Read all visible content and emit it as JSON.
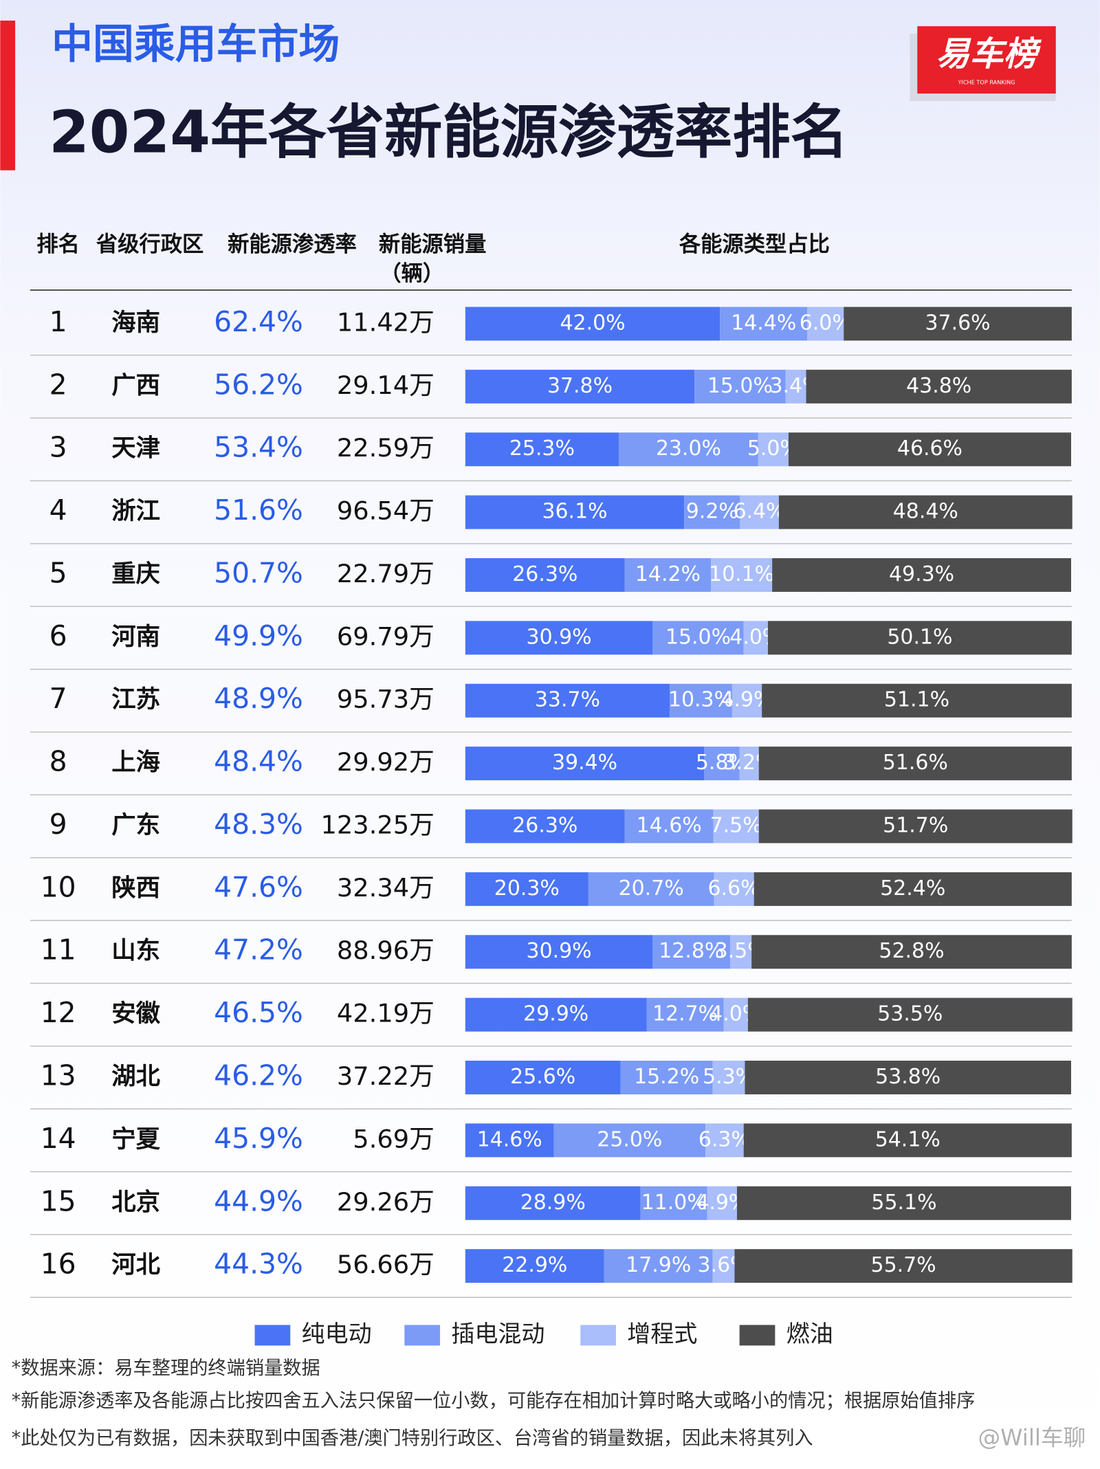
{
  "header": {
    "title": "中国乘用车市场",
    "subtitle": "2024年各省新能源渗透率排名",
    "logo": "易车榜",
    "logo_sub": "YICHE TOP RANKING"
  },
  "table": {
    "columns": [
      "排名",
      "省级行政区",
      "新能源渗透率",
      "新能源销量"
    ],
    "unit": "（辆）",
    "rows": [
      [
        "1",
        "海南",
        "62.4%",
        "11.42万"
      ],
      [
        "2",
        "广西",
        "56.2%",
        "29.14万"
      ],
      [
        "3",
        "天津",
        "53.4%",
        "22.59万"
      ],
      [
        "4",
        "浙江",
        "51.6%",
        "96.54万"
      ],
      [
        "5",
        "重庆",
        "50.7%",
        "22.79万"
      ],
      [
        "6",
        "河南",
        "49.9%",
        "69.79万"
      ],
      [
        "7",
        "江苏",
        "48.9%",
        "95.73万"
      ],
      [
        "8",
        "上海",
        "48.4%",
        "29.92万"
      ],
      [
        "9",
        "广东",
        "48.3%",
        "123.25万"
      ],
      [
        "10",
        "陕西",
        "47.6%",
        "32.34万"
      ],
      [
        "11",
        "山东",
        "47.2%",
        "88.96万"
      ],
      [
        "12",
        "安徽",
        "46.5%",
        "42.19万"
      ],
      [
        "13",
        "湖北",
        "46.2%",
        "37.22万"
      ],
      [
        "14",
        "宁夏",
        "45.9%",
        "5.69万"
      ],
      [
        "15",
        "北京",
        "44.9%",
        "29.26万"
      ],
      [
        "16",
        "河北",
        "44.3%",
        "56.66万"
      ]
    ]
  },
  "chart_data": {
    "type": "stacked-bar",
    "orientation": "horizontal",
    "title": "各能源类型占比",
    "xlim": [
      0,
      100
    ],
    "series": [
      {
        "name": "纯电动",
        "color": "#4a74f5",
        "values": [
          42.0,
          37.8,
          25.3,
          36.1,
          26.3,
          30.9,
          33.7,
          39.4,
          26.3,
          20.3,
          30.9,
          29.9,
          25.6,
          14.6,
          28.9,
          22.9
        ],
        "value_labels": [
          "42.0%",
          "37.8%",
          "25.3%",
          "36.1%",
          "26.3%",
          "30.9%",
          "33.7%",
          "39.4%",
          "26.3%",
          "20.3%",
          "30.9%",
          "29.9%",
          "25.6%",
          "14.6%",
          "28.9%",
          "22.9%"
        ]
      },
      {
        "name": "插电混动",
        "color": "#7b9bf7",
        "values": [
          14.4,
          15.0,
          23.0,
          9.2,
          14.2,
          15.0,
          10.3,
          5.8,
          14.6,
          20.7,
          12.8,
          12.7,
          15.2,
          25.0,
          11.0,
          17.9
        ],
        "value_labels": [
          "14.4%",
          "15.0%",
          "23.0%",
          "9.2%",
          "14.2%",
          "15.0%",
          "10.3%",
          "5.8%",
          "14.6%",
          "20.7%",
          "12.8%",
          "12.7%",
          "15.2%",
          "25.0%",
          "11.0%",
          "17.9%"
        ]
      },
      {
        "name": "增程式",
        "color": "#a9befa",
        "values": [
          6.0,
          3.4,
          5.0,
          6.4,
          10.1,
          4.0,
          4.9,
          3.2,
          7.5,
          6.6,
          3.5,
          4.0,
          5.3,
          6.3,
          4.9,
          3.6
        ],
        "value_labels": [
          "6.0%",
          "3.4%",
          "5.0%",
          "6.4%",
          "10.1%",
          "4.0%",
          "4.9%",
          "3.2%",
          "7.5%",
          "6.6%",
          "3.5%",
          "4.0%",
          "5.3%",
          "6.3%",
          "4.9%",
          "3.6%"
        ]
      },
      {
        "name": "燃油",
        "color": "#4d4d4d",
        "values": [
          37.6,
          43.8,
          46.6,
          48.4,
          49.3,
          50.1,
          51.1,
          51.6,
          51.7,
          52.4,
          52.8,
          53.5,
          53.8,
          54.1,
          55.1,
          55.7
        ],
        "value_labels": [
          "37.6%",
          "43.8%",
          "46.6%",
          "48.4%",
          "49.3%",
          "50.1%",
          "51.1%",
          "51.6%",
          "51.7%",
          "52.4%",
          "52.8%",
          "53.5%",
          "53.8%",
          "54.1%",
          "55.1%",
          "55.7%"
        ]
      }
    ]
  },
  "footnotes": [
    "*数据来源：易车整理的终端销量数据",
    "*新能源渗透率及各能源占比按四舍五入法只保留一位小数，可能存在相加计算时略大或略小的情况；根据原始值排序",
    "*此处仅为已有数据，因未获取到中国香港/澳门特别行政区、台湾省的销量数据，因此未将其列入"
  ],
  "watermark": "@Will车聊"
}
